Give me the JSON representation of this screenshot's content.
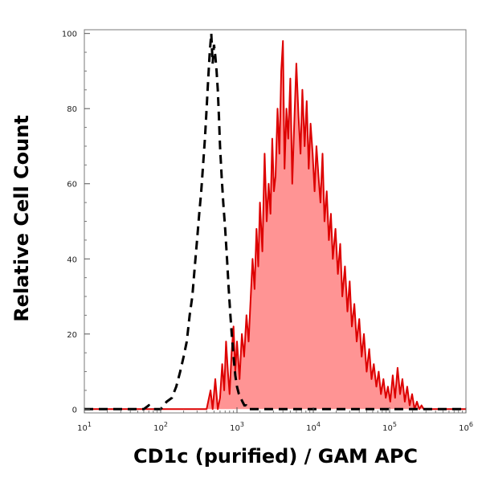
{
  "chart_data": {
    "type": "area",
    "title": "",
    "xlabel": "CD1c (purified) / GAM APC",
    "ylabel": "Relative Cell Count",
    "xscale": "log",
    "xlim": [
      10,
      1000000
    ],
    "ylim": [
      -1,
      101
    ],
    "x_ticks": [
      {
        "base": "10",
        "exp": "1",
        "value": 10
      },
      {
        "base": "10",
        "exp": "2",
        "value": 100
      },
      {
        "base": "10",
        "exp": "3",
        "value": 1000
      },
      {
        "base": "10",
        "exp": "4",
        "value": 10000
      },
      {
        "base": "10",
        "exp": "5",
        "value": 100000
      },
      {
        "base": "10",
        "exp": "6",
        "value": 1000000
      }
    ],
    "y_ticks": [
      "0",
      "20",
      "40",
      "60",
      "80",
      "100"
    ],
    "grid": false,
    "legend": "none",
    "series": [
      {
        "style": "filled",
        "line_color": "#dd0000",
        "fill_color": "#ff9494",
        "x": [
          10,
          400,
          450,
          480,
          520,
          560,
          600,
          640,
          680,
          720,
          760,
          800,
          850,
          900,
          950,
          1000,
          1080,
          1160,
          1240,
          1330,
          1420,
          1500,
          1600,
          1700,
          1800,
          1900,
          2000,
          2150,
          2300,
          2450,
          2600,
          2750,
          2900,
          3050,
          3200,
          3400,
          3600,
          3800,
          4000,
          4200,
          4450,
          4700,
          5000,
          5300,
          5600,
          6000,
          6400,
          6800,
          7200,
          7700,
          8200,
          8700,
          9200,
          9800,
          10400,
          11000,
          11700,
          12400,
          13200,
          14000,
          15000,
          16000,
          17000,
          18000,
          19500,
          21000,
          22500,
          24000,
          26000,
          28000,
          30000,
          32000,
          34500,
          37000,
          40000,
          43000,
          46000,
          50000,
          54000,
          58000,
          62000,
          67000,
          72000,
          77000,
          83000,
          89000,
          95000,
          102000,
          110000,
          118000,
          127000,
          137000,
          147000,
          158000,
          170000,
          183000,
          197000,
          212000,
          228000,
          245000,
          262000,
          280000,
          300000,
          1000000
        ],
        "y": [
          0,
          0,
          5,
          0,
          8,
          0,
          3,
          12,
          5,
          18,
          10,
          4,
          15,
          22,
          10,
          18,
          8,
          20,
          14,
          25,
          18,
          28,
          40,
          32,
          48,
          38,
          55,
          42,
          68,
          50,
          60,
          52,
          72,
          58,
          62,
          80,
          68,
          90,
          98,
          64,
          80,
          72,
          88,
          60,
          75,
          92,
          78,
          68,
          85,
          70,
          82,
          64,
          76,
          68,
          58,
          70,
          62,
          55,
          68,
          50,
          58,
          45,
          52,
          40,
          48,
          36,
          44,
          30,
          38,
          26,
          34,
          22,
          28,
          18,
          24,
          14,
          20,
          10,
          16,
          8,
          12,
          6,
          10,
          4,
          8,
          3,
          6,
          2,
          9,
          3,
          11,
          4,
          8,
          2,
          6,
          1,
          4,
          0,
          2,
          0,
          1,
          0,
          0,
          0
        ]
      },
      {
        "style": "dashed",
        "line_color": "#000000",
        "x": [
          10,
          60,
          70,
          80,
          100,
          120,
          140,
          160,
          180,
          200,
          220,
          240,
          260,
          280,
          300,
          320,
          340,
          360,
          380,
          400,
          420,
          440,
          460,
          480,
          500,
          520,
          540,
          560,
          580,
          600,
          630,
          660,
          700,
          740,
          780,
          820,
          860,
          900,
          950,
          1000,
          1060,
          1120,
          1180,
          1250,
          1320,
          1400,
          1500,
          1600,
          1800,
          2000,
          3000,
          1000000
        ],
        "y": [
          0,
          0,
          1,
          0,
          0,
          2,
          3,
          6,
          10,
          14,
          18,
          25,
          30,
          38,
          45,
          52,
          58,
          65,
          72,
          80,
          88,
          95,
          100,
          92,
          97,
          94,
          90,
          85,
          78,
          70,
          62,
          55,
          48,
          40,
          32,
          25,
          19,
          14,
          9,
          6,
          4,
          3,
          2,
          1,
          1,
          0,
          0,
          0,
          0,
          0,
          0,
          0
        ]
      }
    ]
  }
}
